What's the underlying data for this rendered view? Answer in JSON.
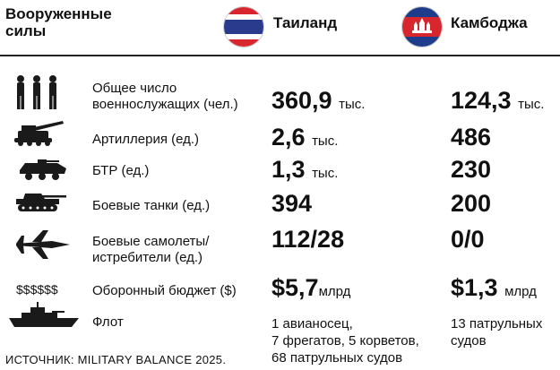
{
  "header": {
    "title_line1": "Вооруженные",
    "title_line2": "силы",
    "country_a": "Таиланд",
    "country_b": "Камбоджа"
  },
  "flags": {
    "thailand_colors": [
      "#d7262e",
      "#ffffff",
      "#2a3a8c"
    ],
    "cambodia_colors": [
      "#1e3c8c",
      "#d7262e",
      "#ffffff"
    ]
  },
  "rows": [
    {
      "icon": "soldiers-icon",
      "label_line1": "Общее число",
      "label_line2": "военнослужащих (чел.)",
      "thailand": {
        "value": "360,9",
        "unit": "тыс."
      },
      "cambodia": {
        "value": "124,3",
        "unit": "тыс."
      }
    },
    {
      "icon": "artillery-icon",
      "label_line1": "Артиллерия (ед.)",
      "label_line2": "",
      "thailand": {
        "value": "2,6",
        "unit": "тыс."
      },
      "cambodia": {
        "value": "486",
        "unit": ""
      }
    },
    {
      "icon": "apc-icon",
      "label_line1": "БТР (ед.)",
      "label_line2": "",
      "thailand": {
        "value": "1,3",
        "unit": "тыс."
      },
      "cambodia": {
        "value": "230",
        "unit": ""
      }
    },
    {
      "icon": "tank-icon",
      "label_line1": "Боевые танки (ед.)",
      "label_line2": "",
      "thailand": {
        "value": "394",
        "unit": ""
      },
      "cambodia": {
        "value": "200",
        "unit": ""
      }
    },
    {
      "icon": "fighter-jet-icon",
      "label_line1": "Боевые самолеты/",
      "label_line2": "истребители (ед.)",
      "thailand": {
        "value": "112/28",
        "unit": ""
      },
      "cambodia": {
        "value": "0/0",
        "unit": ""
      }
    },
    {
      "icon": "money-icon",
      "icon_text": "$$$$$$",
      "label_line1": "Оборонный бюджет ($)",
      "label_line2": "",
      "thailand": {
        "value": "$5,7",
        "unit": "млрд"
      },
      "cambodia": {
        "value": "$1,3",
        "unit": "млрд"
      }
    },
    {
      "icon": "warship-icon",
      "label_line1": "Флот",
      "label_line2": "",
      "thailand": {
        "line1": "1 авианосец,",
        "line2": "7 фрегатов, 5 корветов,",
        "line3": "68 патрульных судов"
      },
      "cambodia": {
        "line1": "13 патрульных",
        "line2": "судов"
      }
    }
  ],
  "source": "ИСТОЧНИК: MILITARY BALANCE 2025."
}
